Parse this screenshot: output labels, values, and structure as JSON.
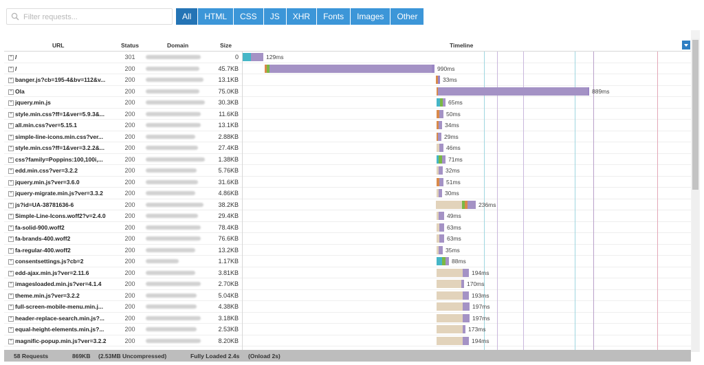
{
  "search": {
    "placeholder": "Filter requests..."
  },
  "filters": [
    "All",
    "HTML",
    "CSS",
    "JS",
    "XHR",
    "Fonts",
    "Images",
    "Other"
  ],
  "active_filter": "All",
  "columns": {
    "url": "URL",
    "status": "Status",
    "domain": "Domain",
    "size": "Size",
    "timeline": "Timeline"
  },
  "rows": [
    {
      "url": "/",
      "status": "301",
      "size": "0",
      "time": "129ms"
    },
    {
      "url": "/",
      "status": "200",
      "size": "45.7KB",
      "time": "990ms"
    },
    {
      "url": "banger.js?cb=195-4&bv=112&v...",
      "status": "200",
      "size": "13.1KB",
      "time": "33ms"
    },
    {
      "url": "Ola",
      "status": "200",
      "size": "75.0KB",
      "time": "889ms"
    },
    {
      "url": "jquery.min.js",
      "status": "200",
      "size": "30.3KB",
      "time": "65ms"
    },
    {
      "url": "style.min.css?ff=1&ver=5.9.3&...",
      "status": "200",
      "size": "11.6KB",
      "time": "50ms"
    },
    {
      "url": "all.min.css?ver=5.15.1",
      "status": "200",
      "size": "13.1KB",
      "time": "34ms"
    },
    {
      "url": "simple-line-icons.min.css?ver...",
      "status": "200",
      "size": "2.88KB",
      "time": "29ms"
    },
    {
      "url": "style.min.css?ff=1&ver=3.2.2&...",
      "status": "200",
      "size": "27.4KB",
      "time": "46ms"
    },
    {
      "url": "css?family=Poppins:100,100i,...",
      "status": "200",
      "size": "1.38KB",
      "time": "71ms"
    },
    {
      "url": "edd.min.css?ver=3.2.2",
      "status": "200",
      "size": "5.76KB",
      "time": "32ms"
    },
    {
      "url": "jquery.min.js?ver=3.6.0",
      "status": "200",
      "size": "31.6KB",
      "time": "51ms"
    },
    {
      "url": "jquery-migrate.min.js?ver=3.3.2",
      "status": "200",
      "size": "4.86KB",
      "time": "30ms"
    },
    {
      "url": "js?id=UA-38781636-6",
      "status": "200",
      "size": "38.2KB",
      "time": "236ms"
    },
    {
      "url": "Simple-Line-Icons.woff2?v=2.4.0",
      "status": "200",
      "size": "29.4KB",
      "time": "49ms"
    },
    {
      "url": "fa-solid-900.woff2",
      "status": "200",
      "size": "78.4KB",
      "time": "63ms"
    },
    {
      "url": "fa-brands-400.woff2",
      "status": "200",
      "size": "76.6KB",
      "time": "63ms"
    },
    {
      "url": "fa-regular-400.woff2",
      "status": "200",
      "size": "13.2KB",
      "time": "35ms"
    },
    {
      "url": "consentsettings.js?cb=2",
      "status": "200",
      "size": "1.17KB",
      "time": "88ms"
    },
    {
      "url": "edd-ajax.min.js?ver=2.11.6",
      "status": "200",
      "size": "3.81KB",
      "time": "194ms"
    },
    {
      "url": "imagesloaded.min.js?ver=4.1.4",
      "status": "200",
      "size": "2.70KB",
      "time": "170ms"
    },
    {
      "url": "theme.min.js?ver=3.2.2",
      "status": "200",
      "size": "5.04KB",
      "time": "193ms"
    },
    {
      "url": "full-screen-mobile-menu.min.j...",
      "status": "200",
      "size": "4.38KB",
      "time": "197ms"
    },
    {
      "url": "header-replace-search.min.js?...",
      "status": "200",
      "size": "3.18KB",
      "time": "197ms"
    },
    {
      "url": "equal-height-elements.min.js?...",
      "status": "200",
      "size": "2.53KB",
      "time": "173ms"
    },
    {
      "url": "magnific-popup.min.js?ver=3.2.2",
      "status": "200",
      "size": "8.20KB",
      "time": "194ms"
    }
  ],
  "footer": {
    "requests": "58 Requests",
    "transfer": "869KB",
    "uncompressed": "(2.53MB Uncompressed)",
    "loaded": "Fully Loaded 2.4s",
    "onload": "(Onload 2s)"
  },
  "colors": {
    "accent": "#3c96d8",
    "accent_active": "#2474b5",
    "blocking": "#e2d3bb",
    "dns": "#45b6c7",
    "connect": "#d98a4a",
    "ssl": "#7ab844",
    "wait": "#a492c5",
    "receive": "#9a86c4"
  }
}
